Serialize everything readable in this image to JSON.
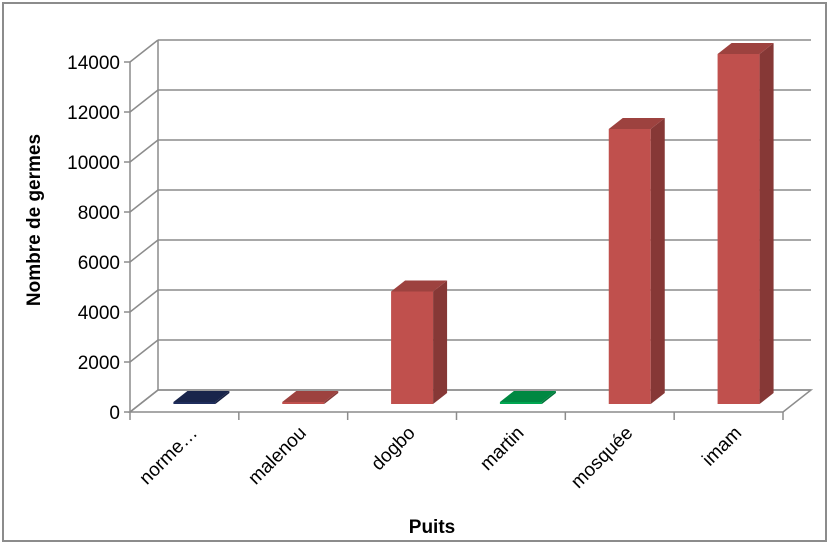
{
  "chart_data": {
    "type": "bar",
    "style": "3d-column",
    "categories": [
      "norme…",
      "malenou",
      "dogbo",
      "martin",
      "mosquée",
      "imam"
    ],
    "values": [
      0,
      50,
      4500,
      0,
      11000,
      14000
    ],
    "bar_colors": [
      "#1f2d5c",
      "#c0504d",
      "#c0504d",
      "#00a651",
      "#c0504d",
      "#c0504d"
    ],
    "xlabel": "Puits",
    "ylabel": "Nombre de germes",
    "ylim": [
      0,
      14000
    ],
    "yticks": [
      0,
      2000,
      4000,
      6000,
      8000,
      10000,
      12000,
      14000
    ],
    "grid": true,
    "legend": "none"
  }
}
